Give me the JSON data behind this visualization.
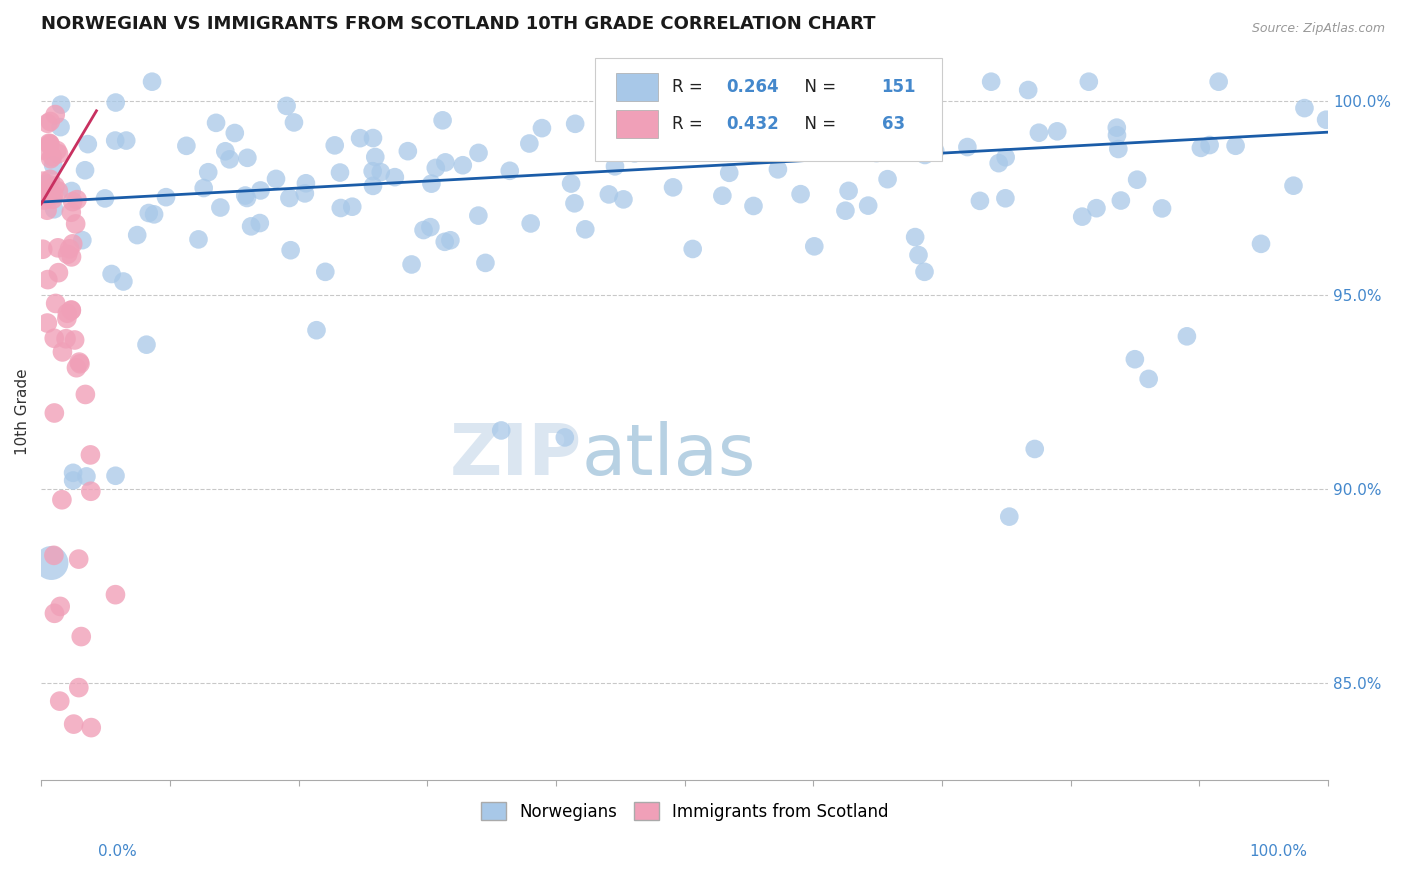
{
  "title": "NORWEGIAN VS IMMIGRANTS FROM SCOTLAND 10TH GRADE CORRELATION CHART",
  "source": "Source: ZipAtlas.com",
  "ylabel": "10th Grade",
  "right_yticks": [
    85.0,
    90.0,
    95.0,
    100.0
  ],
  "blue_R": 0.264,
  "blue_N": 151,
  "pink_R": 0.432,
  "pink_N": 63,
  "blue_color": "#a8c8e8",
  "pink_color": "#f0a0b8",
  "blue_line_color": "#1a5ca8",
  "pink_line_color": "#c83060",
  "legend_label_blue": "Norwegians",
  "legend_label_pink": "Immigrants from Scotland",
  "watermark_zip": "ZIP",
  "watermark_atlas": "atlas",
  "ylim_low": 0.825,
  "ylim_high": 1.015
}
